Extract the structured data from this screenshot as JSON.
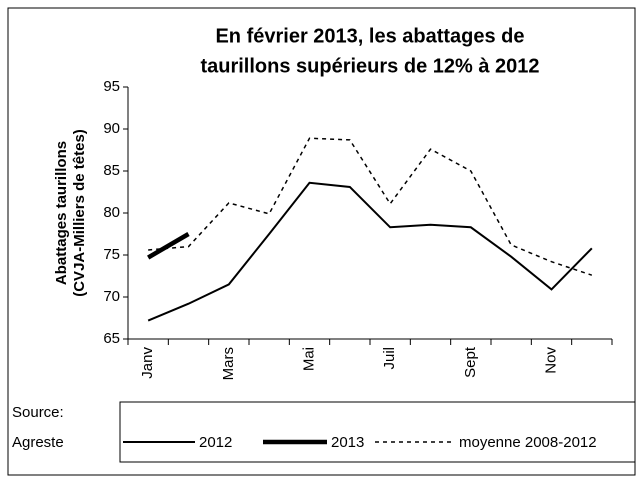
{
  "chart_data": {
    "type": "line",
    "title": [
      "En février 2013, les abattages de",
      "taurillons supérieurs de 12% à 2012"
    ],
    "y_label": [
      "Abattages taurillons",
      "(CVJA-Milliers de têtes)"
    ],
    "source": [
      "Source:",
      "Agreste"
    ],
    "categories": [
      "Janv",
      null,
      "Mars",
      null,
      "Mai",
      null,
      "Juil",
      null,
      "Sept",
      null,
      "Nov",
      null
    ],
    "series": [
      {
        "name": "2012",
        "color": "#000000",
        "line_width": 2,
        "dash": "none",
        "values": [
          67.2,
          69.2,
          71.5,
          77.5,
          83.6,
          83.1,
          78.3,
          78.6,
          78.3,
          74.8,
          70.9,
          75.8
        ]
      },
      {
        "name": "2013",
        "color": "#000000",
        "line_width": 4.5,
        "dash": "none",
        "values": [
          74.7,
          77.5,
          null,
          null,
          null,
          null,
          null,
          null,
          null,
          null,
          null,
          null
        ]
      },
      {
        "name": "moyenne 2008-2012",
        "color": "#000000",
        "line_width": 1.5,
        "dash": "4 4",
        "values": [
          75.6,
          76.0,
          81.2,
          79.9,
          88.9,
          88.7,
          81.1,
          87.6,
          85.0,
          76.2,
          74.2,
          72.6
        ]
      }
    ],
    "ylim": [
      65,
      95
    ],
    "yticks": [
      65,
      70,
      75,
      80,
      85,
      90,
      95
    ]
  }
}
